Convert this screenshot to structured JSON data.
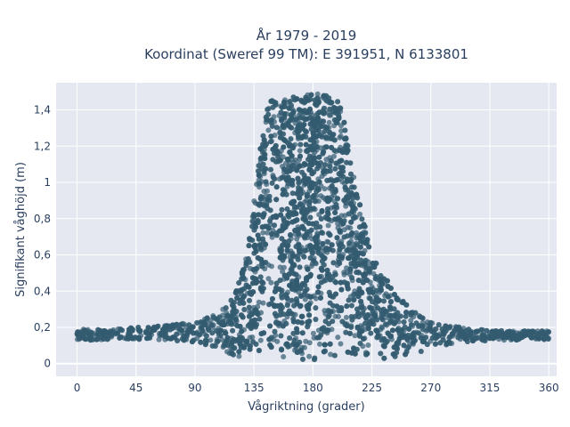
{
  "chart_data": {
    "type": "scatter",
    "title_line1": "År 1979 - 2019",
    "title_line2": "Koordinat (Sweref 99 TM): E 391951, N 6133801",
    "xlabel": "Vågriktning (grader)",
    "ylabel": "Signifikant våghöjd (m)",
    "xlim": [
      -16,
      366
    ],
    "ylim": [
      -0.07,
      1.55
    ],
    "x_ticks": [
      0,
      45,
      90,
      135,
      180,
      225,
      270,
      315,
      360
    ],
    "x_tick_labels": [
      "0",
      "45",
      "90",
      "135",
      "180",
      "225",
      "270",
      "315",
      "360"
    ],
    "y_ticks": [
      0,
      0.2,
      0.4,
      0.6,
      0.8,
      1.0,
      1.2,
      1.4
    ],
    "y_tick_labels": [
      "0",
      "0,2",
      "0,4",
      "0,6",
      "0,8",
      "1",
      "1,2",
      "1,4"
    ],
    "grid": true,
    "marker_color": "#335b70",
    "background_color": "#e5e8f0",
    "envelope": {
      "x": [
        0,
        30,
        60,
        90,
        105,
        115,
        122,
        128,
        132,
        136,
        140,
        145,
        150,
        160,
        170,
        180,
        190,
        200,
        205,
        210,
        215,
        220,
        225,
        232,
        240,
        250,
        260,
        270,
        285,
        300,
        330,
        360
      ],
      "y_max": [
        0.19,
        0.19,
        0.21,
        0.23,
        0.27,
        0.33,
        0.42,
        0.55,
        0.72,
        0.95,
        1.2,
        1.43,
        1.46,
        1.46,
        1.48,
        1.49,
        1.49,
        1.45,
        1.31,
        1.1,
        0.9,
        0.76,
        0.65,
        0.52,
        0.43,
        0.34,
        0.27,
        0.24,
        0.21,
        0.19,
        0.18,
        0.18
      ],
      "y_min": [
        0.13,
        0.13,
        0.13,
        0.12,
        0.09,
        0.06,
        0.04,
        0.03,
        0.02,
        0.02,
        0.02,
        0.02,
        0.02,
        0.02,
        0.02,
        0.02,
        0.02,
        0.02,
        0.02,
        0.02,
        0.02,
        0.02,
        0.02,
        0.02,
        0.03,
        0.04,
        0.06,
        0.08,
        0.11,
        0.12,
        0.13,
        0.13
      ]
    },
    "point_count": 4200
  }
}
